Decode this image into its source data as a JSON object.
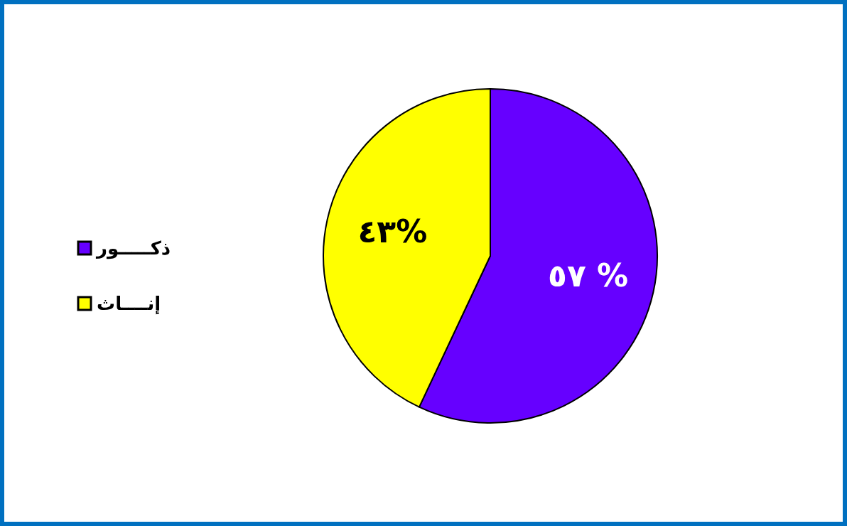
{
  "chart_data": {
    "type": "pie",
    "categories": [
      "ذكـــــور",
      "إنــــاث"
    ],
    "values": [
      57,
      43
    ],
    "colors": [
      "#6600ff",
      "#ffff00"
    ],
    "value_labels": [
      "٥٧ %",
      "٤٣%"
    ],
    "legend": "left"
  }
}
